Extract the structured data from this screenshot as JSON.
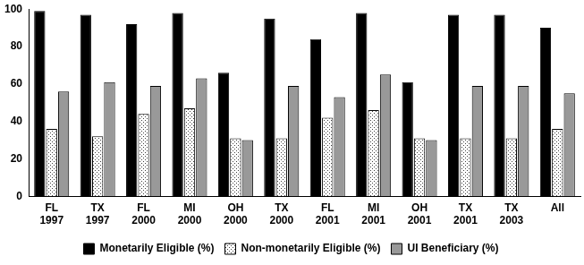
{
  "chart_data": {
    "type": "bar",
    "categories": [
      "FL 1997",
      "TX 1997",
      "FL 2000",
      "MI 2000",
      "OH 2000",
      "TX 2000",
      "FL 2001",
      "MI 2001",
      "OH 2001",
      "TX 2001",
      "TX 2003",
      "All"
    ],
    "series": [
      {
        "name": "Monetarily Eligible (%)",
        "color": "#000000",
        "values": [
          99,
          97,
          92,
          98,
          66,
          95,
          84,
          98,
          61,
          97,
          97,
          90
        ]
      },
      {
        "name": "Non-monetarily Eligible (%)",
        "color": "#404040",
        "values": [
          36,
          32,
          44,
          47,
          31,
          31,
          42,
          46,
          31,
          31,
          31,
          36
        ]
      },
      {
        "name": "UI Beneficiary (%)",
        "color": "#999999",
        "values": [
          56,
          61,
          59,
          63,
          30,
          59,
          53,
          65,
          30,
          59,
          59,
          55
        ]
      }
    ],
    "ylim": [
      0,
      100
    ],
    "yticks": [
      0,
      20,
      40,
      60,
      80,
      100
    ],
    "grid": false,
    "legend": "bottom"
  }
}
